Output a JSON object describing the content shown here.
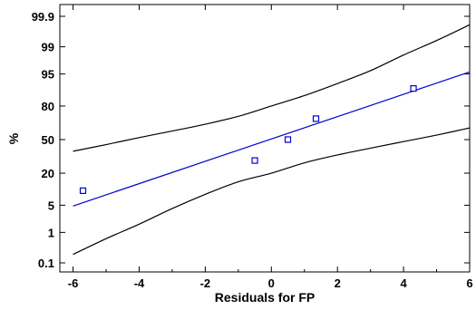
{
  "chart_data": {
    "type": "scatter",
    "title": "",
    "xlabel": "Residuals for FP",
    "ylabel": "%",
    "xlim": [
      -6.4,
      6.0
    ],
    "ylim_percent": [
      0.1,
      99.9
    ],
    "y_scale": "normal-probability",
    "x_ticks": [
      -6,
      -4,
      -2,
      0,
      2,
      4,
      6
    ],
    "y_ticks": [
      0.1,
      1,
      5,
      20,
      50,
      80,
      95,
      99,
      99.9
    ],
    "y_tick_labels": [
      "0.1",
      "1",
      "5",
      "20",
      "50",
      "80",
      "95",
      "99",
      "99.9"
    ],
    "grid": false,
    "points": [
      {
        "x": -5.7,
        "y": 10
      },
      {
        "x": -0.5,
        "y": 30
      },
      {
        "x": 0.5,
        "y": 50
      },
      {
        "x": 1.35,
        "y": 70
      },
      {
        "x": 4.3,
        "y": 90
      }
    ],
    "fit_line": {
      "x": [
        -6.0,
        6.0
      ],
      "y": [
        4.8,
        95.5
      ]
    },
    "confidence_upper": {
      "x": [
        -6.0,
        -5.0,
        -4.0,
        -3.0,
        -2.0,
        -1.0,
        0.0,
        1.0,
        2.0,
        3.0,
        4.0,
        5.0,
        6.0
      ],
      "y": [
        38.5,
        45,
        52,
        58.5,
        65,
        72,
        80,
        86.5,
        92,
        95.8,
        98.3,
        99.35,
        99.8
      ]
    },
    "confidence_lower": {
      "x": [
        -6.0,
        -5.0,
        -4.0,
        -3.0,
        -2.0,
        -1.0,
        0.0,
        1.0,
        2.0,
        3.0,
        4.0,
        5.0,
        6.0
      ],
      "y": [
        0.2,
        0.65,
        1.7,
        4.2,
        8.5,
        14.5,
        20,
        28,
        35,
        41.5,
        48,
        54.5,
        61.5
      ]
    },
    "colors": {
      "points": "#0000cc",
      "fit_line": "#0000cc",
      "confidence": "#000000",
      "axes": "#000000"
    }
  }
}
